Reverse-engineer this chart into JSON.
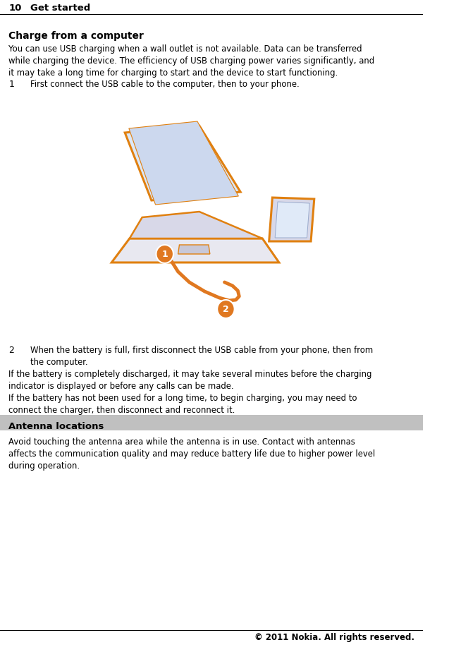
{
  "page_num": "10",
  "page_header": "Get started",
  "section_title": "Charge from a computer",
  "section_body": "You can use USB charging when a wall outlet is not available. Data can be transferred\nwhile charging the device. The efficiency of USB charging power varies significantly, and\nit may take a long time for charging to start and the device to start functioning.",
  "step1_num": "1",
  "step1_text": "First connect the USB cable to the computer, then to your phone.",
  "step2_num": "2",
  "step2_text": "When the battery is full, first disconnect the USB cable from your phone, then from\nthe computer.",
  "note1": "If the battery is completely discharged, it may take several minutes before the charging\nindicator is displayed or before any calls can be made.",
  "note2": "If the battery has not been used for a long time, to begin charging, you may need to\nconnect the charger, then disconnect and reconnect it.",
  "section2_title": "Antenna locations",
  "section2_title_bg": "#c0c0c0",
  "section2_body": "Avoid touching the antenna area while the antenna is in use. Contact with antennas\naffects the communication quality and may reduce battery life due to higher power level\nduring operation.",
  "footer": "© 2011 Nokia. All rights reserved.",
  "bg_color": "#ffffff",
  "text_color": "#000000",
  "header_line_color": "#000000",
  "laptop_body_color": "#e8e8f0",
  "laptop_screen_color": "#dce8f8",
  "laptop_outline_color": "#e08010",
  "cable_color": "#e07820",
  "phone_color": "#d8d8e8",
  "circle_color": "#e07820",
  "footer_line_color": "#000000"
}
